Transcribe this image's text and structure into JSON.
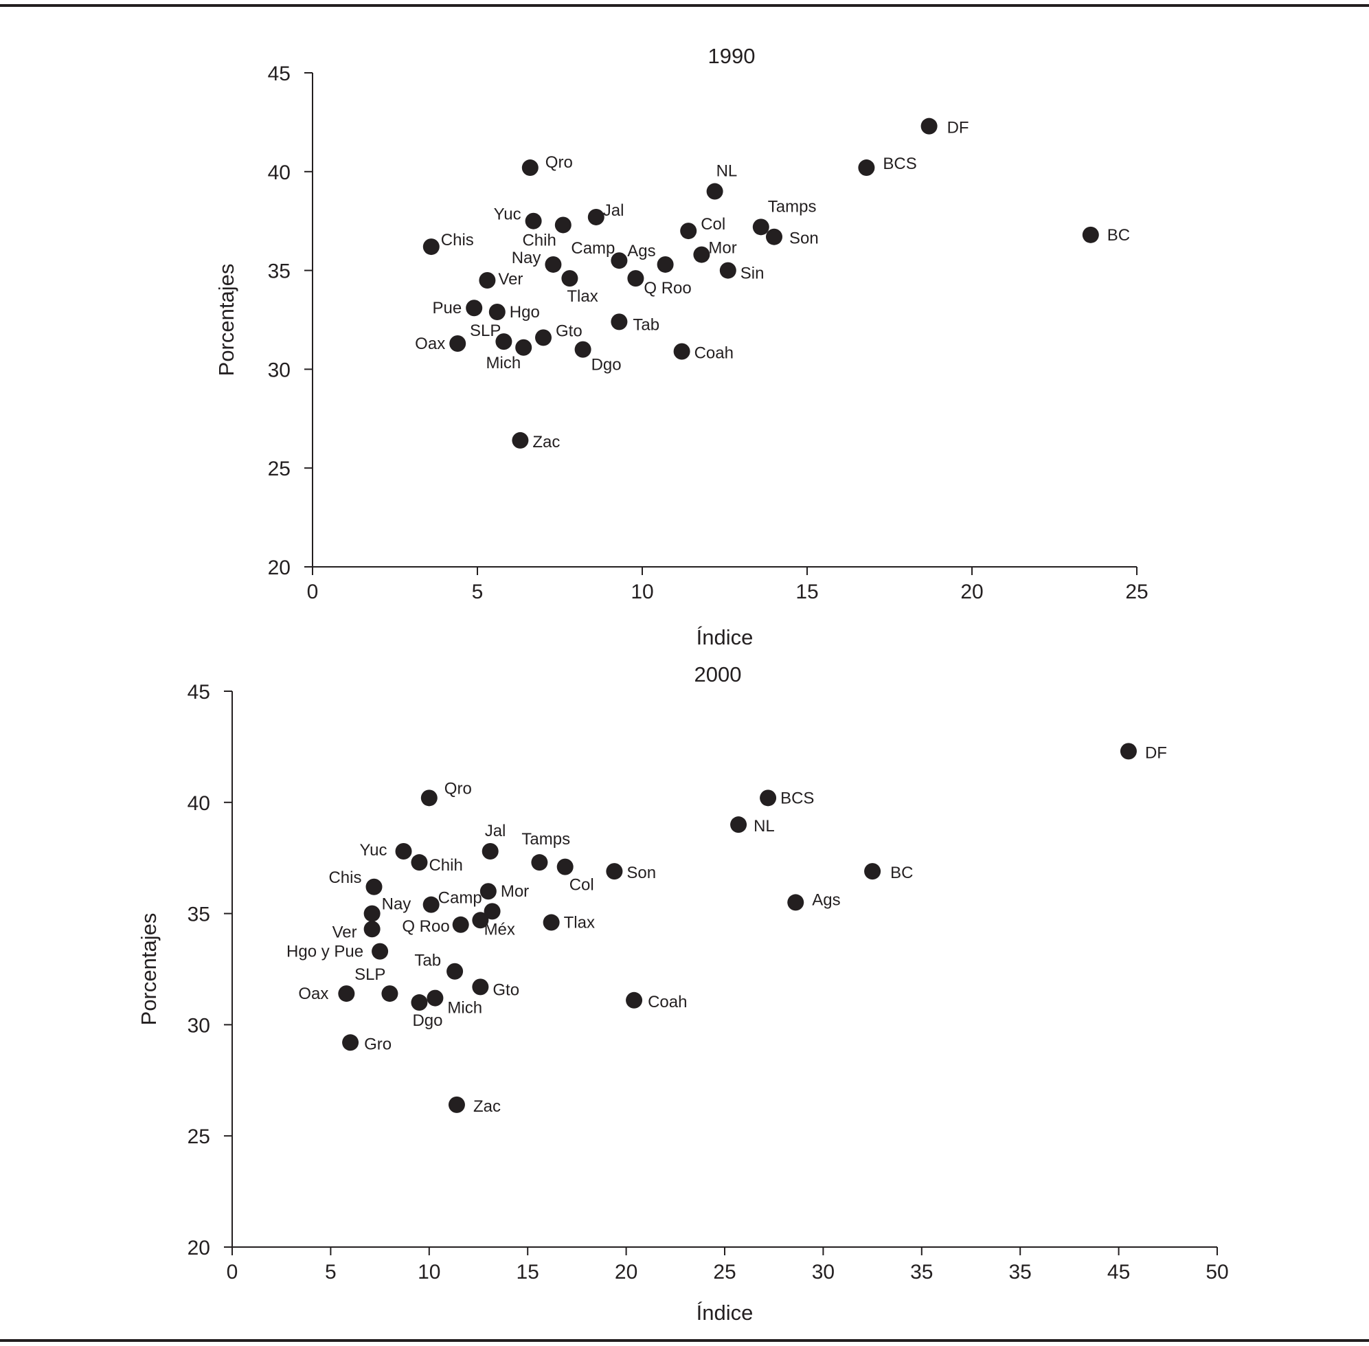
{
  "chart_data": [
    {
      "type": "scatter",
      "title": "1990",
      "xlabel": "Índice",
      "ylabel": "Porcentajes",
      "xlim": [
        0,
        25
      ],
      "ylim": [
        20,
        45
      ],
      "x_ticks": [
        "0",
        "5",
        "10",
        "15",
        "20",
        "25"
      ],
      "y_ticks": [
        "20",
        "25",
        "30",
        "35",
        "40",
        "45"
      ],
      "grid": false,
      "points": [
        {
          "label": "DF",
          "x": 18.7,
          "y": 42.3
        },
        {
          "label": "BCS",
          "x": 16.8,
          "y": 40.2
        },
        {
          "label": "BC",
          "x": 23.6,
          "y": 36.8
        },
        {
          "label": "NL",
          "x": 12.2,
          "y": 39.0
        },
        {
          "label": "Tamps",
          "x": 13.6,
          "y": 37.2
        },
        {
          "label": "Son",
          "x": 14.0,
          "y": 36.7
        },
        {
          "label": "Sin",
          "x": 12.6,
          "y": 35.0
        },
        {
          "label": "Col",
          "x": 11.4,
          "y": 37.0
        },
        {
          "label": "Mor",
          "x": 11.8,
          "y": 35.8
        },
        {
          "label": "Ags",
          "x": 10.7,
          "y": 35.3
        },
        {
          "label": "Q Roo",
          "x": 9.8,
          "y": 34.6
        },
        {
          "label": "Camp",
          "x": 9.3,
          "y": 35.5
        },
        {
          "label": "Jal",
          "x": 8.6,
          "y": 37.7
        },
        {
          "label": "Qro",
          "x": 6.6,
          "y": 40.2
        },
        {
          "label": "Yuc",
          "x": 6.7,
          "y": 37.5
        },
        {
          "label": "Chih",
          "x": 7.6,
          "y": 37.3
        },
        {
          "label": "Nay",
          "x": 7.3,
          "y": 35.3
        },
        {
          "label": "Tlax",
          "x": 7.8,
          "y": 34.6
        },
        {
          "label": "Chis",
          "x": 3.6,
          "y": 36.2
        },
        {
          "label": "Ver",
          "x": 5.3,
          "y": 34.5
        },
        {
          "label": "Pue",
          "x": 4.9,
          "y": 33.1
        },
        {
          "label": "Hgo",
          "x": 5.6,
          "y": 32.9
        },
        {
          "label": "Tab",
          "x": 9.3,
          "y": 32.4
        },
        {
          "label": "Gto",
          "x": 7.0,
          "y": 31.6
        },
        {
          "label": "SLP",
          "x": 5.8,
          "y": 31.4
        },
        {
          "label": "Oax",
          "x": 4.4,
          "y": 31.3
        },
        {
          "label": "Mich",
          "x": 6.4,
          "y": 31.1
        },
        {
          "label": "Dgo",
          "x": 8.2,
          "y": 31.0
        },
        {
          "label": "Coah",
          "x": 11.2,
          "y": 30.9
        },
        {
          "label": "Zac",
          "x": 6.3,
          "y": 26.4
        }
      ]
    },
    {
      "type": "scatter",
      "title": "2000",
      "xlabel": "Índice",
      "ylabel": "Porcentajes",
      "xlim": [
        0,
        50
      ],
      "ylim": [
        20,
        45
      ],
      "x_ticks": [
        "0",
        "5",
        "10",
        "15",
        "20",
        "25",
        "30",
        "35",
        "35",
        "45",
        "50"
      ],
      "y_ticks": [
        "20",
        "25",
        "30",
        "35",
        "40",
        "45"
      ],
      "grid": false,
      "points": [
        {
          "label": "DF",
          "x": 45.5,
          "y": 42.3
        },
        {
          "label": "BCS",
          "x": 27.2,
          "y": 40.2
        },
        {
          "label": "NL",
          "x": 25.7,
          "y": 39.0
        },
        {
          "label": "BC",
          "x": 32.5,
          "y": 36.9
        },
        {
          "label": "Ags",
          "x": 28.6,
          "y": 35.5
        },
        {
          "label": "Son",
          "x": 19.4,
          "y": 36.9
        },
        {
          "label": "Tamps",
          "x": 15.6,
          "y": 37.3
        },
        {
          "label": "Col",
          "x": 16.9,
          "y": 37.1
        },
        {
          "label": "Jal",
          "x": 13.1,
          "y": 37.8
        },
        {
          "label": "Qro",
          "x": 10.0,
          "y": 40.2
        },
        {
          "label": "Yuc",
          "x": 8.7,
          "y": 37.8
        },
        {
          "label": "Chih",
          "x": 9.5,
          "y": 37.3
        },
        {
          "label": "Chis",
          "x": 7.2,
          "y": 36.2
        },
        {
          "label": "Mor",
          "x": 13.0,
          "y": 36.0
        },
        {
          "label": "Camp",
          "x": 10.1,
          "y": 35.4
        },
        {
          "label": "Nay",
          "x": 7.1,
          "y": 35.0
        },
        {
          "label": "Méx",
          "x": 13.2,
          "y": 35.1
        },
        {
          "label": "",
          "x": 12.6,
          "y": 34.7
        },
        {
          "label": "Q Roo",
          "x": 11.6,
          "y": 34.5
        },
        {
          "label": "Tlax",
          "x": 16.2,
          "y": 34.6
        },
        {
          "label": "Ver",
          "x": 7.1,
          "y": 34.3
        },
        {
          "label": "Hgo y Pue",
          "x": 7.5,
          "y": 33.3
        },
        {
          "label": "Tab",
          "x": 11.3,
          "y": 32.4
        },
        {
          "label": "Gto",
          "x": 12.6,
          "y": 31.7
        },
        {
          "label": "SLP",
          "x": 8.0,
          "y": 31.4
        },
        {
          "label": "Oax",
          "x": 5.8,
          "y": 31.4
        },
        {
          "label": "Mich",
          "x": 10.3,
          "y": 31.2
        },
        {
          "label": "Dgo",
          "x": 9.5,
          "y": 31.0
        },
        {
          "label": "Coah",
          "x": 20.4,
          "y": 31.1
        },
        {
          "label": "Gro",
          "x": 6.0,
          "y": 29.2
        },
        {
          "label": "Zac",
          "x": 11.4,
          "y": 26.4
        }
      ]
    }
  ]
}
